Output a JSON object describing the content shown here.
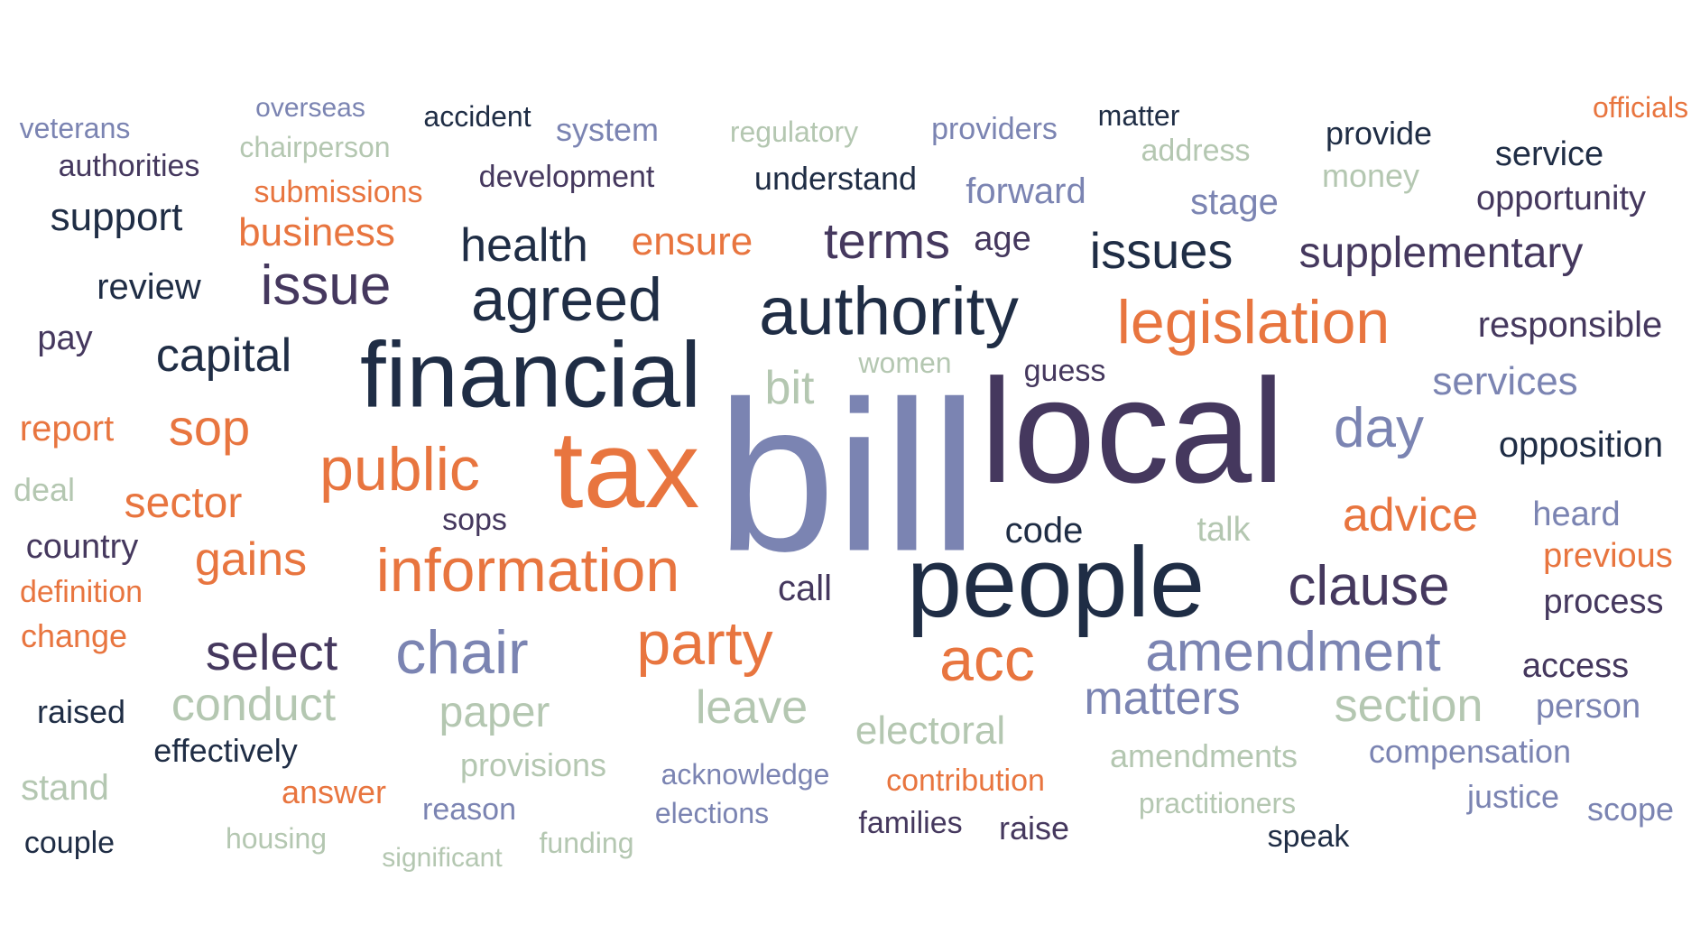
{
  "colors": {
    "navy": "#1f2d45",
    "purple": "#45385e",
    "periwinkle": "#7b84b2",
    "orange": "#e8753f",
    "sage": "#b4c7b1"
  },
  "words": [
    {
      "text": "bill",
      "color": "periwinkle"
    },
    {
      "text": "local",
      "color": "purple"
    },
    {
      "text": "financial",
      "color": "navy"
    },
    {
      "text": "tax",
      "color": "orange"
    },
    {
      "text": "people",
      "color": "navy"
    },
    {
      "text": "authority",
      "color": "navy"
    },
    {
      "text": "legislation",
      "color": "orange"
    },
    {
      "text": "agreed",
      "color": "navy"
    },
    {
      "text": "information",
      "color": "orange"
    },
    {
      "text": "public",
      "color": "orange"
    },
    {
      "text": "chair",
      "color": "periwinkle"
    },
    {
      "text": "party",
      "color": "orange"
    },
    {
      "text": "acc",
      "color": "orange"
    },
    {
      "text": "clause",
      "color": "purple"
    },
    {
      "text": "amendment",
      "color": "periwinkle"
    },
    {
      "text": "issue",
      "color": "purple"
    },
    {
      "text": "day",
      "color": "periwinkle"
    },
    {
      "text": "advice",
      "color": "orange"
    },
    {
      "text": "supplementary",
      "color": "purple"
    },
    {
      "text": "issues",
      "color": "navy"
    },
    {
      "text": "health",
      "color": "navy"
    },
    {
      "text": "terms",
      "color": "purple"
    },
    {
      "text": "capital",
      "color": "navy"
    },
    {
      "text": "sop",
      "color": "orange"
    },
    {
      "text": "select",
      "color": "purple"
    },
    {
      "text": "gains",
      "color": "orange"
    },
    {
      "text": "sector",
      "color": "orange"
    },
    {
      "text": "matters",
      "color": "periwinkle"
    },
    {
      "text": "section",
      "color": "sage"
    },
    {
      "text": "leave",
      "color": "sage"
    },
    {
      "text": "conduct",
      "color": "sage"
    },
    {
      "text": "paper",
      "color": "sage"
    },
    {
      "text": "electoral",
      "color": "sage"
    },
    {
      "text": "services",
      "color": "periwinkle"
    },
    {
      "text": "responsible",
      "color": "purple"
    },
    {
      "text": "opposition",
      "color": "navy"
    },
    {
      "text": "bit",
      "color": "sage"
    },
    {
      "text": "ensure",
      "color": "orange"
    },
    {
      "text": "business",
      "color": "orange"
    },
    {
      "text": "support",
      "color": "navy"
    },
    {
      "text": "review",
      "color": "navy"
    },
    {
      "text": "forward",
      "color": "periwinkle"
    },
    {
      "text": "stage",
      "color": "periwinkle"
    },
    {
      "text": "opportunity",
      "color": "purple"
    },
    {
      "text": "code",
      "color": "navy"
    },
    {
      "text": "heard",
      "color": "periwinkle"
    },
    {
      "text": "previous",
      "color": "orange"
    },
    {
      "text": "process",
      "color": "purple"
    },
    {
      "text": "access",
      "color": "purple"
    },
    {
      "text": "person",
      "color": "periwinkle"
    },
    {
      "text": "compensation",
      "color": "periwinkle"
    },
    {
      "text": "justice",
      "color": "periwinkle"
    },
    {
      "text": "scope",
      "color": "periwinkle"
    },
    {
      "text": "amendments",
      "color": "sage"
    },
    {
      "text": "practitioners",
      "color": "sage"
    },
    {
      "text": "speak",
      "color": "navy"
    },
    {
      "text": "raise",
      "color": "purple"
    },
    {
      "text": "families",
      "color": "purple"
    },
    {
      "text": "contribution",
      "color": "orange"
    },
    {
      "text": "acknowledge",
      "color": "periwinkle"
    },
    {
      "text": "elections",
      "color": "periwinkle"
    },
    {
      "text": "provisions",
      "color": "sage"
    },
    {
      "text": "reason",
      "color": "periwinkle"
    },
    {
      "text": "funding",
      "color": "sage"
    },
    {
      "text": "significant",
      "color": "sage"
    },
    {
      "text": "housing",
      "color": "sage"
    },
    {
      "text": "answer",
      "color": "orange"
    },
    {
      "text": "effectively",
      "color": "navy"
    },
    {
      "text": "raised",
      "color": "navy"
    },
    {
      "text": "stand",
      "color": "sage"
    },
    {
      "text": "couple",
      "color": "navy"
    },
    {
      "text": "change",
      "color": "orange"
    },
    {
      "text": "definition",
      "color": "orange"
    },
    {
      "text": "country",
      "color": "purple"
    },
    {
      "text": "deal",
      "color": "sage"
    },
    {
      "text": "report",
      "color": "orange"
    },
    {
      "text": "pay",
      "color": "purple"
    },
    {
      "text": "call",
      "color": "purple"
    },
    {
      "text": "sops",
      "color": "purple"
    },
    {
      "text": "talk",
      "color": "sage"
    },
    {
      "text": "guess",
      "color": "purple"
    },
    {
      "text": "women",
      "color": "sage"
    },
    {
      "text": "age",
      "color": "purple"
    },
    {
      "text": "understand",
      "color": "navy"
    },
    {
      "text": "development",
      "color": "purple"
    },
    {
      "text": "submissions",
      "color": "orange"
    },
    {
      "text": "authorities",
      "color": "purple"
    },
    {
      "text": "chairperson",
      "color": "sage"
    },
    {
      "text": "overseas",
      "color": "periwinkle"
    },
    {
      "text": "veterans",
      "color": "periwinkle"
    },
    {
      "text": "accident",
      "color": "navy"
    },
    {
      "text": "system",
      "color": "periwinkle"
    },
    {
      "text": "regulatory",
      "color": "sage"
    },
    {
      "text": "providers",
      "color": "periwinkle"
    },
    {
      "text": "matter",
      "color": "navy"
    },
    {
      "text": "address",
      "color": "sage"
    },
    {
      "text": "provide",
      "color": "navy"
    },
    {
      "text": "money",
      "color": "sage"
    },
    {
      "text": "service",
      "color": "navy"
    },
    {
      "text": "officials",
      "color": "orange"
    }
  ]
}
